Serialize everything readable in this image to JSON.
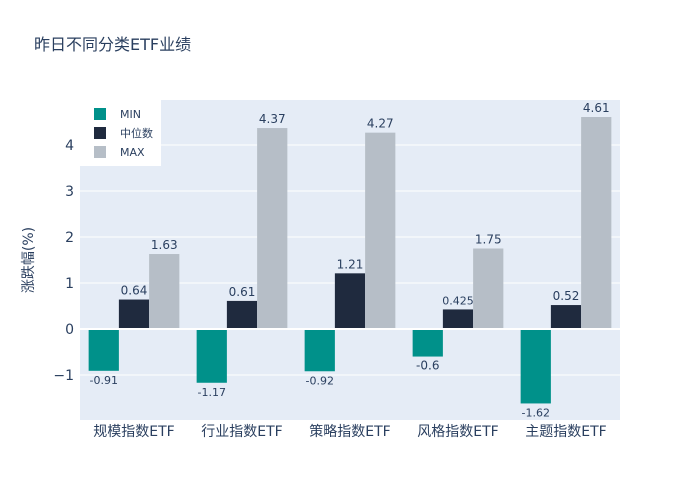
{
  "chart_data": {
    "type": "bar",
    "title": "昨日不同分类ETF业绩",
    "xlabel": "",
    "ylabel": "涨跌幅(%)",
    "categories": [
      "规模指数ETF",
      "行业指数ETF",
      "策略指数ETF",
      "风格指数ETF",
      "主题指数ETF"
    ],
    "series": [
      {
        "name": "MIN",
        "color": "#00918a",
        "values": [
          -0.91,
          -1.17,
          -0.92,
          -0.6,
          -1.62
        ],
        "labels": [
          "-0.91",
          "-1.17",
          "-0.92",
          "-0.6",
          "-1.62"
        ]
      },
      {
        "name": "中位数",
        "color": "#1f2a3e",
        "values": [
          0.64,
          0.61,
          1.21,
          0.425,
          0.52
        ],
        "labels": [
          "0.64",
          "0.61",
          "1.21",
          "0.425",
          "0.52"
        ]
      },
      {
        "name": "MAX",
        "color": "#b6bec7",
        "values": [
          1.63,
          4.37,
          4.27,
          1.75,
          4.61
        ],
        "labels": [
          "1.63",
          "4.37",
          "4.27",
          "1.75",
          "4.61"
        ]
      }
    ],
    "ylim": [
      -1.98,
      4.98
    ],
    "yticks": [
      -1,
      0,
      1,
      2,
      3,
      4
    ],
    "ytick_labels": [
      "−1",
      "0",
      "1",
      "2",
      "3",
      "4"
    ],
    "grid": true,
    "legend_position": "top-left",
    "plot_background": "#e5ecf6"
  }
}
